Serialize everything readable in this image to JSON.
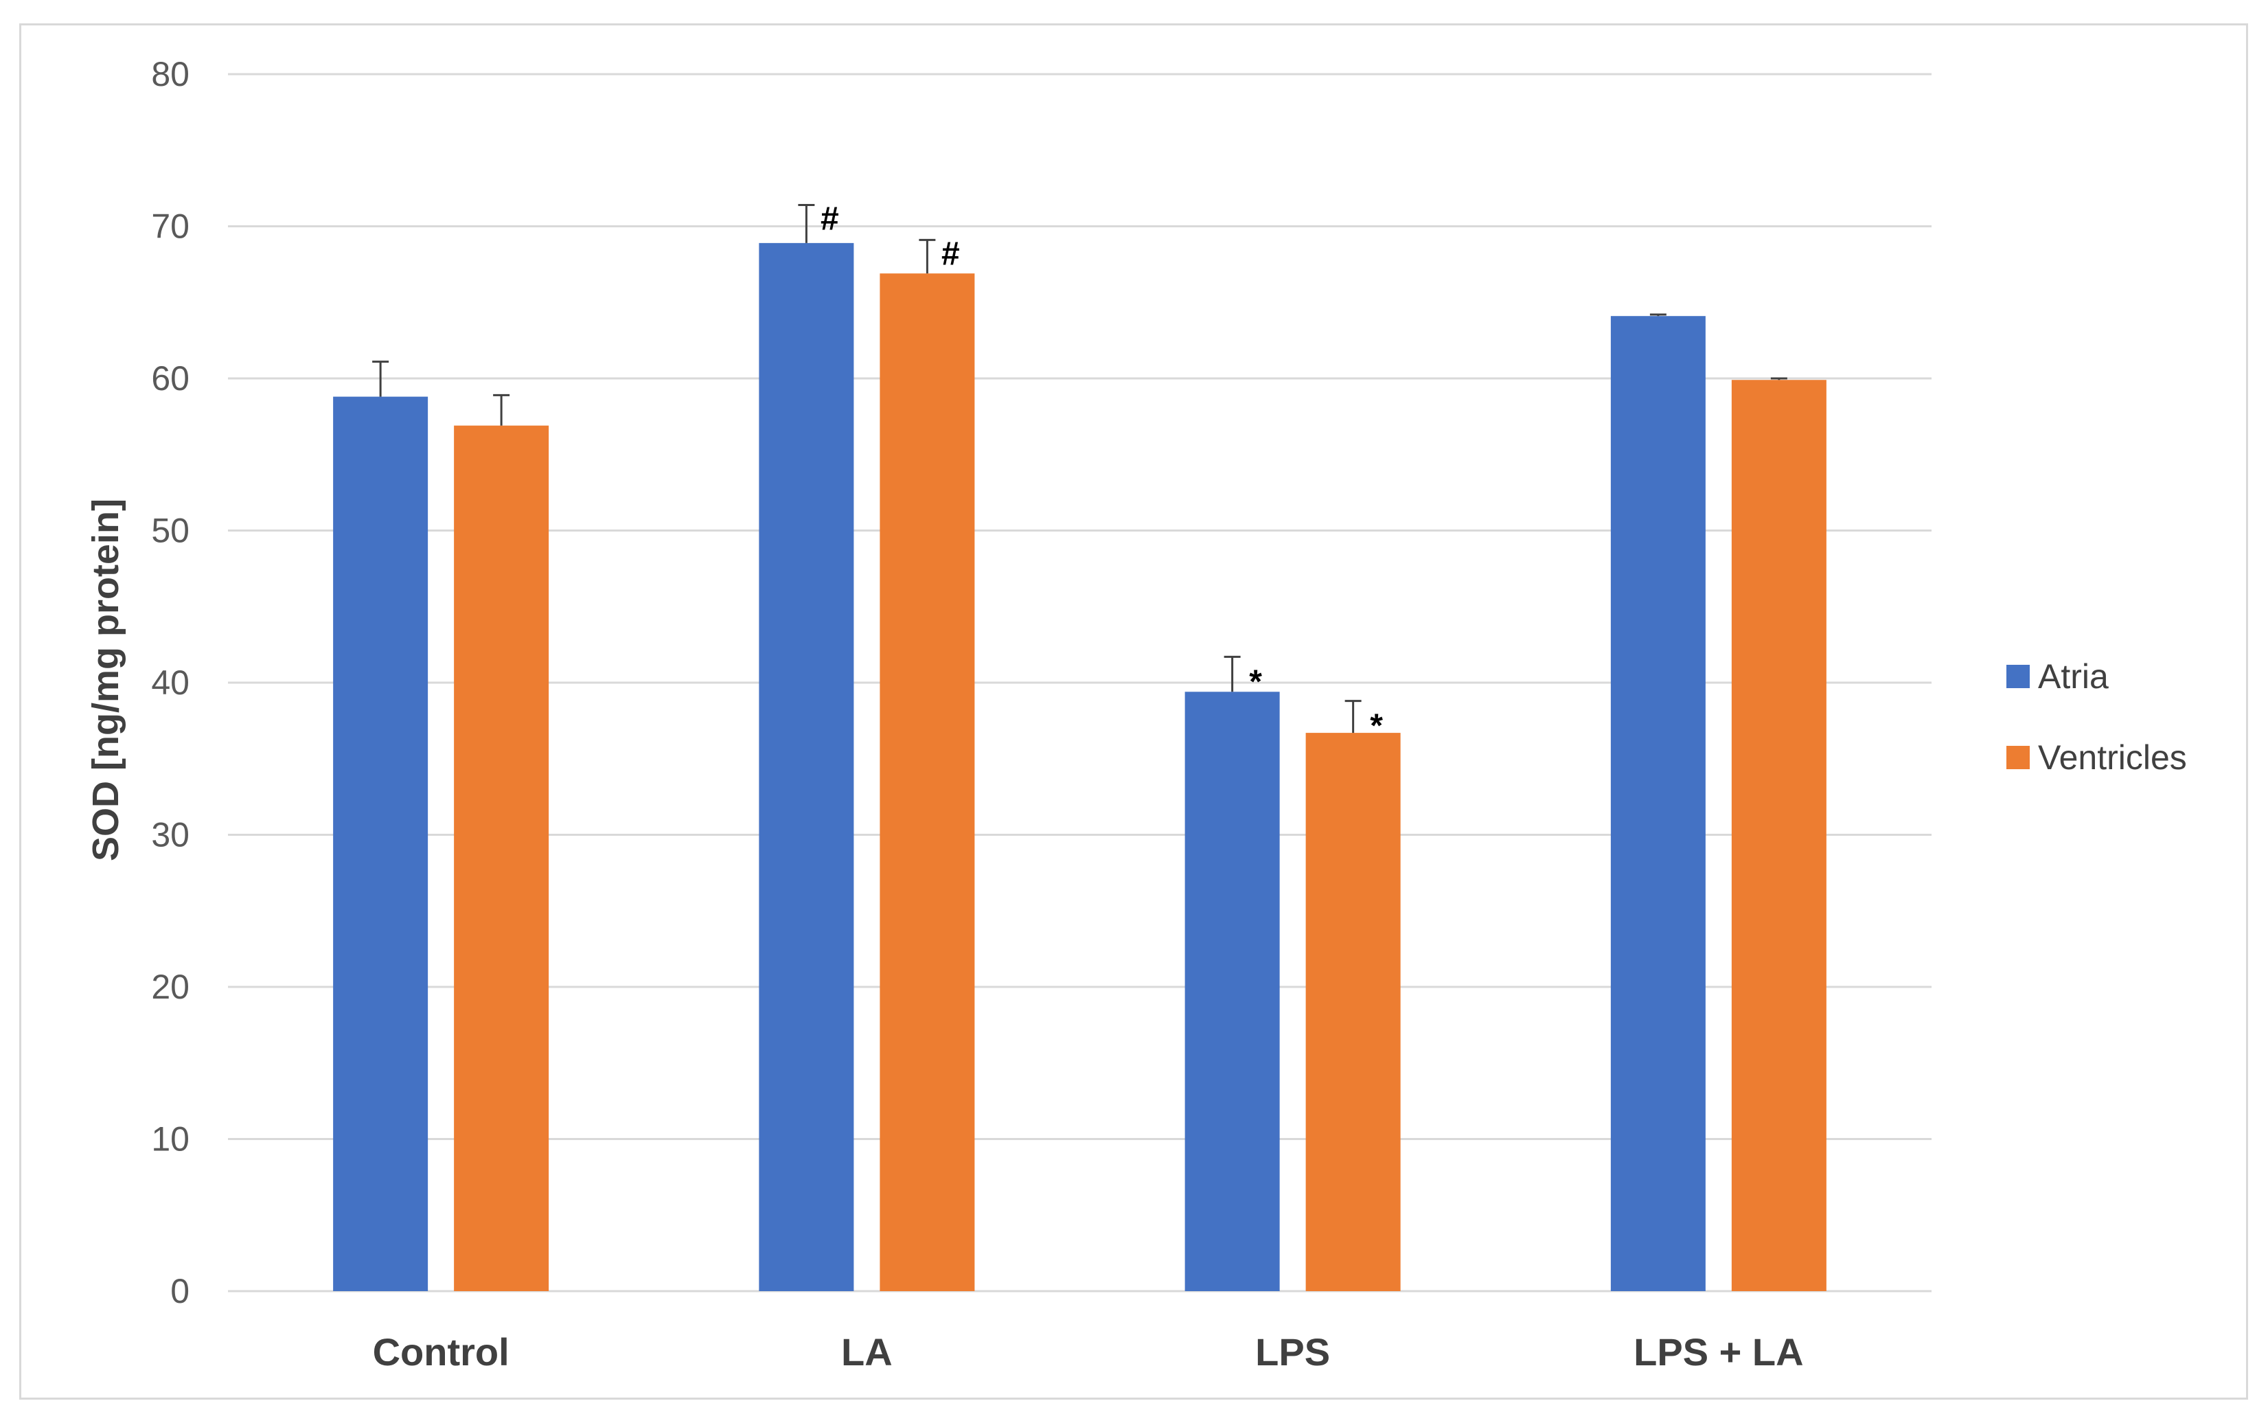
{
  "chart_data": {
    "type": "bar",
    "title": "",
    "xlabel": "",
    "ylabel": "SOD [ng/mg protein]",
    "ylim": [
      0,
      80
    ],
    "yticks": [
      0,
      10,
      20,
      30,
      40,
      50,
      60,
      70,
      80
    ],
    "grid": true,
    "legend_position": "right",
    "categories": [
      "Control",
      "LA",
      "LPS",
      "LPS + LA"
    ],
    "series": [
      {
        "name": "Atria",
        "color": "#4472c4",
        "values": [
          58.8,
          68.9,
          39.4,
          64.1
        ],
        "errors": [
          2.3,
          2.5,
          2.3,
          0.1
        ],
        "annotations": [
          "",
          "#",
          "*",
          ""
        ]
      },
      {
        "name": "Ventricles",
        "color": "#ed7d31",
        "values": [
          56.9,
          66.9,
          36.7,
          59.9
        ],
        "errors": [
          2.0,
          2.2,
          2.1,
          0.1
        ],
        "annotations": [
          "",
          "#",
          "*",
          ""
        ]
      }
    ]
  }
}
